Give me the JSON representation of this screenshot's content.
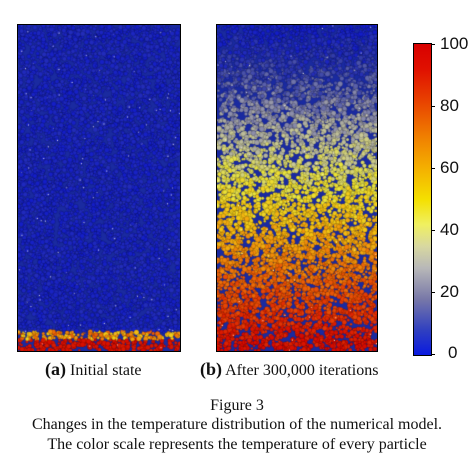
{
  "panels": [
    {
      "id": "a",
      "label_letter": "(a)",
      "label_text": " Initial state"
    },
    {
      "id": "b",
      "label_letter": "(b)",
      "label_text": " After 300,000 iterations"
    }
  ],
  "colorbar": {
    "ticks": [
      "100",
      "80",
      "60",
      "40",
      "20",
      "0"
    ],
    "min": 0,
    "max": 100,
    "colors": {
      "low": "#0a1ae0",
      "mid": "#f4e000",
      "high": "#d80000"
    }
  },
  "caption": {
    "figure": "Figure 3",
    "line1": "Changes in the temperature distribution of the numerical model.",
    "line2": "The color scale represents the temperature of every particle"
  }
}
